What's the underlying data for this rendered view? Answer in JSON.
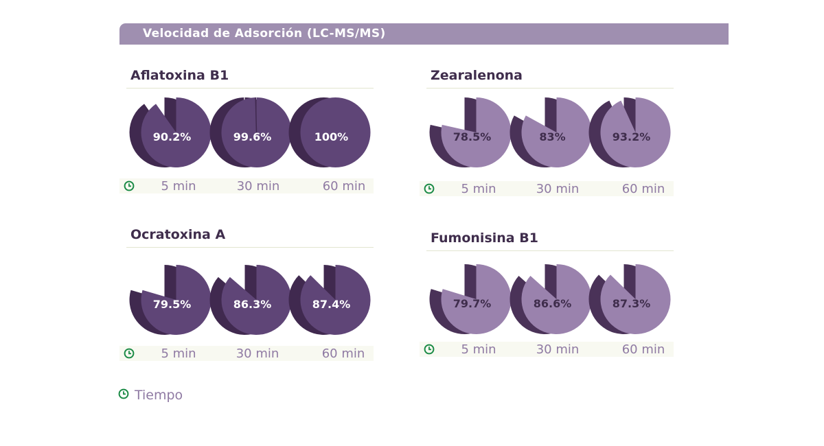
{
  "header": {
    "title": "Velocidad de Adsorción (LC-MS/MS)"
  },
  "colors": {
    "title_bar": "#9f8fb0",
    "dark_pie": "#5f4577",
    "dark_side": "#40294f",
    "light_pie": "#9a82ad",
    "light_side": "#4a3258",
    "clock": "#1a8a45",
    "time_text": "#8f7aa3"
  },
  "legend": {
    "label": "Tiempo",
    "icon": "clock-icon"
  },
  "chart_data": [
    {
      "type": "pie",
      "title": "Aflatoxina B1",
      "style": "dark",
      "categories": [
        "5 min",
        "30 min",
        "60 min"
      ],
      "values": [
        90.2,
        99.6,
        100
      ],
      "labels": [
        "90.2%",
        "99.6%",
        "100%"
      ],
      "unit": "%"
    },
    {
      "type": "pie",
      "title": "Zearalenona",
      "style": "light",
      "categories": [
        "5 min",
        "30 min",
        "60 min"
      ],
      "values": [
        78.5,
        83,
        93.2
      ],
      "labels": [
        "78.5%",
        "83%",
        "93.2%"
      ],
      "unit": "%"
    },
    {
      "type": "pie",
      "title": "Ocratoxina A",
      "style": "dark",
      "categories": [
        "5 min",
        "30 min",
        "60 min"
      ],
      "values": [
        79.5,
        86.3,
        87.4
      ],
      "labels": [
        "79.5%",
        "86.3%",
        "87.4%"
      ],
      "unit": "%"
    },
    {
      "type": "pie",
      "title": "Fumonisina B1",
      "style": "light",
      "categories": [
        "5 min",
        "30 min",
        "60 min"
      ],
      "values": [
        79.7,
        86.6,
        87.3
      ],
      "labels": [
        "79.7%",
        "86.6%",
        "87.3%"
      ],
      "unit": "%"
    }
  ]
}
